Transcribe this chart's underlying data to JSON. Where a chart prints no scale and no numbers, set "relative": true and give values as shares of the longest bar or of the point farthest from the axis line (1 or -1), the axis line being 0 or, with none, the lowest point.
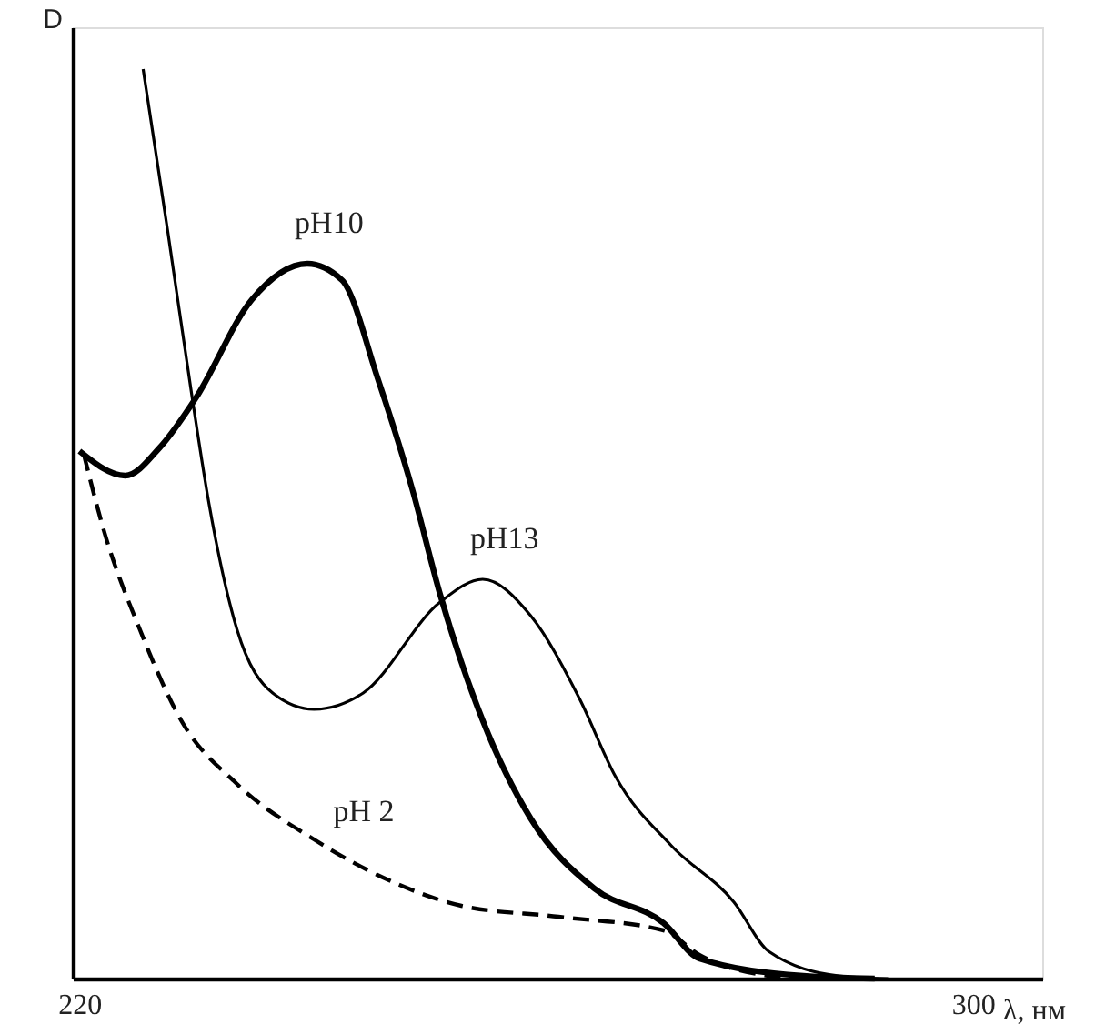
{
  "chart_data": {
    "type": "line",
    "relative": true,
    "xlabel": "λ, нм",
    "ylabel": "D",
    "xlim": [
      219.4,
      306.2
    ],
    "xticks": [
      220,
      300
    ],
    "grid": false,
    "legend": false,
    "marker": "none",
    "series": [
      {
        "name": "pH10",
        "color": "#000000",
        "line_style": "solid",
        "x": [
          220.0,
          224.1,
          227.2,
          230.4,
          235.4,
          240.4,
          243.5,
          246.7,
          249.8,
          252.3,
          256.1,
          260.4,
          266.1,
          272.3,
          275.5,
          284.8,
          291.2
        ],
        "values": [
          0.58,
          0.553,
          0.584,
          0.638,
          0.746,
          0.786,
          0.768,
          0.66,
          0.538,
          0.422,
          0.284,
          0.176,
          0.099,
          0.061,
          0.022,
          0.003,
          0
        ]
      },
      {
        "name": "pH13",
        "color": "#000000",
        "line_style": "solid",
        "x": [
          225.7,
          227.9,
          230.1,
          231.6,
          234.1,
          237.3,
          241.0,
          245.4,
          252.3,
          256.1,
          260.4,
          264.8,
          268.0,
          273.0,
          278.6,
          281.7,
          288.0,
          292.4
        ],
        "values": [
          1.0,
          0.822,
          0.638,
          0.522,
          0.384,
          0.314,
          0.296,
          0.314,
          0.414,
          0.439,
          0.399,
          0.307,
          0.222,
          0.146,
          0.084,
          0.03,
          0.003,
          0
        ]
      },
      {
        "name": "pH 2",
        "color": "#000000",
        "line_style": "dashed",
        "x": [
          220.4,
          222.2,
          225.4,
          229.1,
          234.1,
          241.0,
          247.9,
          254.2,
          262.9,
          272.3,
          275.5,
          281.7,
          284.2
        ],
        "values": [
          0.576,
          0.492,
          0.384,
          0.284,
          0.214,
          0.153,
          0.107,
          0.08,
          0.068,
          0.053,
          0.026,
          0.003,
          0
        ]
      }
    ]
  }
}
